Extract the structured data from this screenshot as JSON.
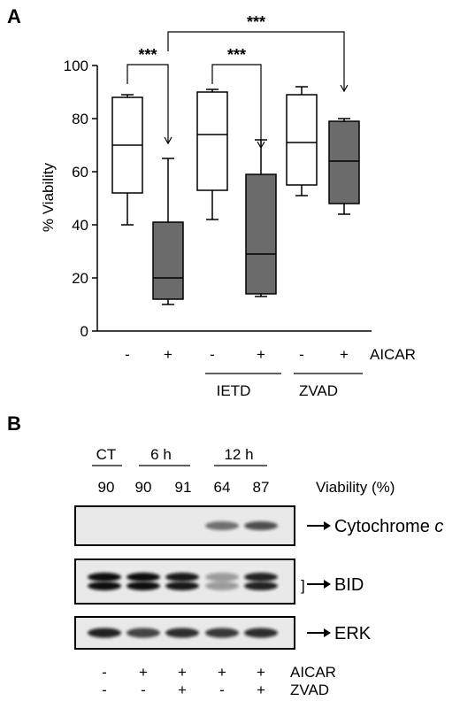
{
  "panel_a": {
    "letter": "A",
    "ylabel": "% Viability",
    "yticks": [
      "0",
      "20",
      "40",
      "60",
      "80",
      "100"
    ],
    "signs": [
      "-",
      "+",
      "-",
      "+",
      "-",
      "+"
    ],
    "aicar_label": "AICAR",
    "group_labels": [
      "IETD",
      "ZVAD"
    ],
    "sig_stars": [
      "***",
      "***",
      "***"
    ]
  },
  "chart_data": {
    "type": "box",
    "ylim": [
      0,
      100
    ],
    "ylabel": "% Viability",
    "yticks": [
      0,
      20,
      40,
      60,
      80,
      100
    ],
    "categories": [
      "-",
      "+",
      "-",
      "+",
      "-",
      "+"
    ],
    "groups": [
      "",
      "",
      "IETD",
      "IETD",
      "ZVAD",
      "ZVAD"
    ],
    "boxes": [
      {
        "min": 40,
        "q1": 52,
        "median": 70,
        "q3": 88,
        "max": 89,
        "fill": "#ffffff"
      },
      {
        "min": 10,
        "q1": 12,
        "median": 20,
        "q3": 41,
        "max": 65,
        "fill": "#6b6b6b"
      },
      {
        "min": 42,
        "q1": 53,
        "median": 74,
        "q3": 90,
        "max": 91,
        "fill": "#ffffff"
      },
      {
        "min": 13,
        "q1": 14,
        "median": 29,
        "q3": 59,
        "max": 72,
        "fill": "#6b6b6b"
      },
      {
        "min": 51,
        "q1": 55,
        "median": 71,
        "q3": 89,
        "max": 92,
        "fill": "#ffffff"
      },
      {
        "min": 44,
        "q1": 48,
        "median": 64,
        "q3": 79,
        "max": 80,
        "fill": "#6b6b6b"
      }
    ],
    "significance": [
      {
        "from": 0,
        "to": 1,
        "label": "***"
      },
      {
        "from": 2,
        "to": 3,
        "label": "***"
      },
      {
        "from": 1,
        "to": 5,
        "label": "***"
      }
    ]
  },
  "panel_b": {
    "letter": "B",
    "header_groups": [
      "CT",
      "6 h",
      "12 h"
    ],
    "viability_values": [
      "90",
      "90",
      "91",
      "64",
      "87"
    ],
    "viability_label": "Viability (%)",
    "blots": [
      {
        "label": "Cytochrome ",
        "label_italic": "c",
        "bracket": "",
        "intensities": [
          0,
          0,
          0,
          0.55,
          0.7
        ]
      },
      {
        "label": "BID",
        "label_italic": "",
        "bracket": "]",
        "intensities": [
          1,
          1,
          0.95,
          0.35,
          0.9
        ]
      },
      {
        "label": "ERK",
        "label_italic": "",
        "bracket": "",
        "intensities": [
          0.9,
          0.75,
          0.85,
          0.8,
          0.85
        ]
      }
    ],
    "aicar_signs": [
      "-",
      "+",
      "+",
      "+",
      "+"
    ],
    "zvad_signs": [
      "-",
      "-",
      "+",
      "-",
      "+"
    ],
    "aicar_label": "AICAR",
    "zvad_label": "ZVAD"
  }
}
